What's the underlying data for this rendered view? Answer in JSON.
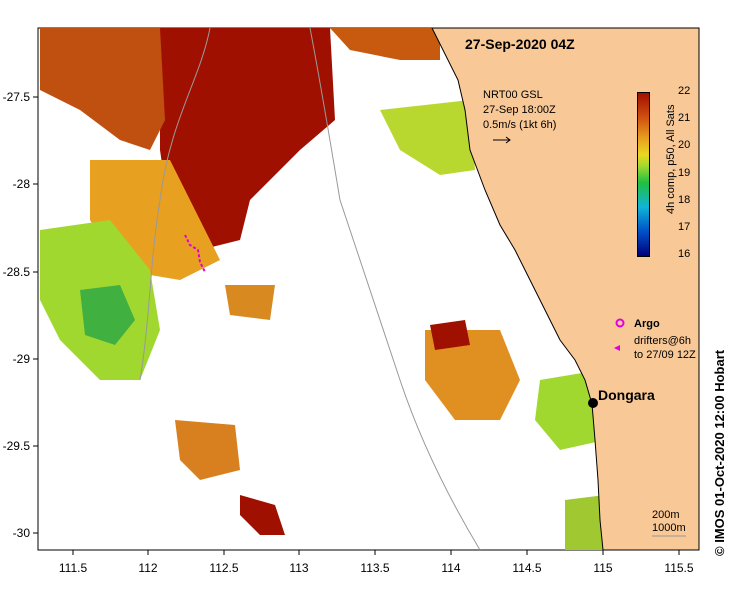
{
  "map": {
    "title": "27-Sep-2020 04Z",
    "credit": "© IMOS 01-Oct-2020 12:00 Hobart",
    "x_ticks": [
      "111.5",
      "112",
      "112.5",
      "113",
      "113.5",
      "114",
      "114.5",
      "115",
      "115.5"
    ],
    "y_ticks": [
      "-27.5",
      "-28",
      "-28.5",
      "-29",
      "-29.5",
      "-30"
    ],
    "lon_range": [
      111.3,
      115.6
    ],
    "lat_range": [
      -30.1,
      -27.1
    ]
  },
  "current_legend": {
    "line1": "NRT00 GSL",
    "line2": "27-Sep 18:00Z",
    "line3": "0.5m/s (1kt 6h)"
  },
  "colorbar": {
    "title": "4h comp, p50, All Sats",
    "ticks": [
      "22",
      "21",
      "20",
      "19",
      "18",
      "17",
      "16"
    ],
    "colors": [
      "#00007a",
      "#0050c8",
      "#10b4d8",
      "#20c040",
      "#a0d830",
      "#e8d820",
      "#e8a020",
      "#d05010",
      "#a01000"
    ]
  },
  "markers": {
    "argo_label": "Argo",
    "drifters_line1": "drifters@6h",
    "drifters_line2": "to 27/09 12Z"
  },
  "places": {
    "town": "Dongara",
    "town_lon": 114.93,
    "town_lat": -29.25
  },
  "contours": {
    "label1": "200m",
    "label2": "1000m"
  },
  "colors": {
    "land": "#f8c896",
    "sst_hot": "#a01000",
    "sst_warm": "#d06010",
    "sst_mid": "#e8a020",
    "sst_cool": "#a0d830",
    "sst_cold": "#40c040",
    "argo": "#e000e0"
  }
}
